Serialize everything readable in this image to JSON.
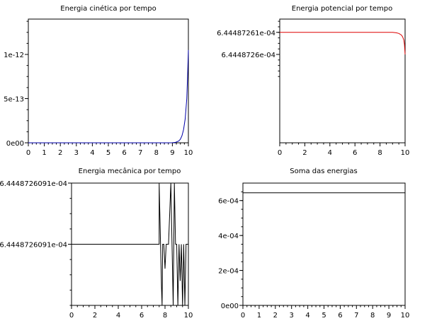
{
  "chart_data": [
    {
      "type": "line",
      "title": "Energia cinética por tempo",
      "color": "#0000aa",
      "xlim": [
        0,
        10
      ],
      "ylim": [
        0,
        1.4e-12
      ],
      "x_ticks": [
        "0",
        "1",
        "2",
        "3",
        "4",
        "5",
        "6",
        "7",
        "8",
        "9",
        "10"
      ],
      "y_ticks": [
        {
          "value": 0,
          "label": "0e00"
        },
        {
          "value": 5e-13,
          "label": "5e-13"
        },
        {
          "value": 1e-12,
          "label": "1e-12"
        }
      ],
      "series": [
        {
          "x": [
            0,
            8.8,
            9.0,
            9.2,
            9.4,
            9.5,
            9.6,
            9.7,
            9.8,
            9.9,
            9.95,
            10.0
          ],
          "y": [
            0,
            0,
            1e-15,
            5e-15,
            2e-14,
            4e-14,
            8e-14,
            1.5e-13,
            2.7e-13,
            5e-13,
            7.5e-13,
            1.05e-12
          ]
        }
      ]
    },
    {
      "type": "line",
      "title": "Energia potencial por tempo",
      "color": "#dd0000",
      "xlim": [
        0,
        10
      ],
      "ylim": [
        0.000644487256,
        0.0006444872616
      ],
      "x_ticks": [
        "0",
        "2",
        "4",
        "6",
        "8",
        "10"
      ],
      "y_ticks": [
        {
          "value": 0.000644487261,
          "label": "6.44487261e-04"
        },
        {
          "value": 0.00064448726,
          "label": "6.4448726e-04"
        }
      ],
      "series": [
        {
          "x": [
            0,
            9.0,
            9.3,
            9.5,
            9.7,
            9.8,
            9.9,
            9.95,
            10.0
          ],
          "y": [
            0.000644487261,
            0.000644487261,
            0.00064448726098,
            0.00064448726095,
            0.00064448726088,
            0.0006444872608,
            0.00064448726065,
            0.00064448726045,
            0.00064448726
          ]
        }
      ]
    },
    {
      "type": "line",
      "title": "Energia mecânica por tempo",
      "color": "#000000",
      "xlim": [
        0,
        10
      ],
      "ylim": [
        0,
        2
      ],
      "x_ticks": [
        "0",
        "2",
        "4",
        "6",
        "8",
        "10"
      ],
      "y_ticks": [
        {
          "value": 2,
          "label": "6.4448726091e-04"
        },
        {
          "value": 1,
          "label": "6.4448726091e-04"
        }
      ],
      "series": [
        {
          "x": [
            0,
            7.5,
            7.5,
            7.7,
            7.75,
            7.8,
            7.9,
            8.0,
            8.1,
            8.3,
            8.5,
            8.7,
            8.8,
            8.9,
            9.0,
            9.1,
            9.2,
            9.3,
            9.4,
            9.5,
            9.6,
            9.7,
            9.8,
            9.9,
            10.0
          ],
          "y": [
            1,
            1,
            2,
            0.3,
            0,
            1,
            1,
            0.6,
            1,
            1,
            2,
            0,
            2,
            1,
            1,
            0,
            1,
            0.4,
            1,
            0,
            1,
            0,
            1,
            1,
            1
          ]
        }
      ]
    },
    {
      "type": "line",
      "title": "Soma das energias",
      "color": "#000000",
      "xlim": [
        0,
        10
      ],
      "ylim": [
        0,
        0.0007
      ],
      "x_ticks": [
        "0",
        "1",
        "2",
        "3",
        "4",
        "5",
        "6",
        "7",
        "8",
        "9",
        "10"
      ],
      "y_ticks": [
        {
          "value": 0,
          "label": "0e00"
        },
        {
          "value": 0.0002,
          "label": "2e-04"
        },
        {
          "value": 0.0004,
          "label": "4e-04"
        },
        {
          "value": 0.0006,
          "label": "6e-04"
        }
      ],
      "series": [
        {
          "x": [
            0,
            10
          ],
          "y": [
            0.00064448726,
            0.00064448726
          ]
        }
      ]
    }
  ]
}
